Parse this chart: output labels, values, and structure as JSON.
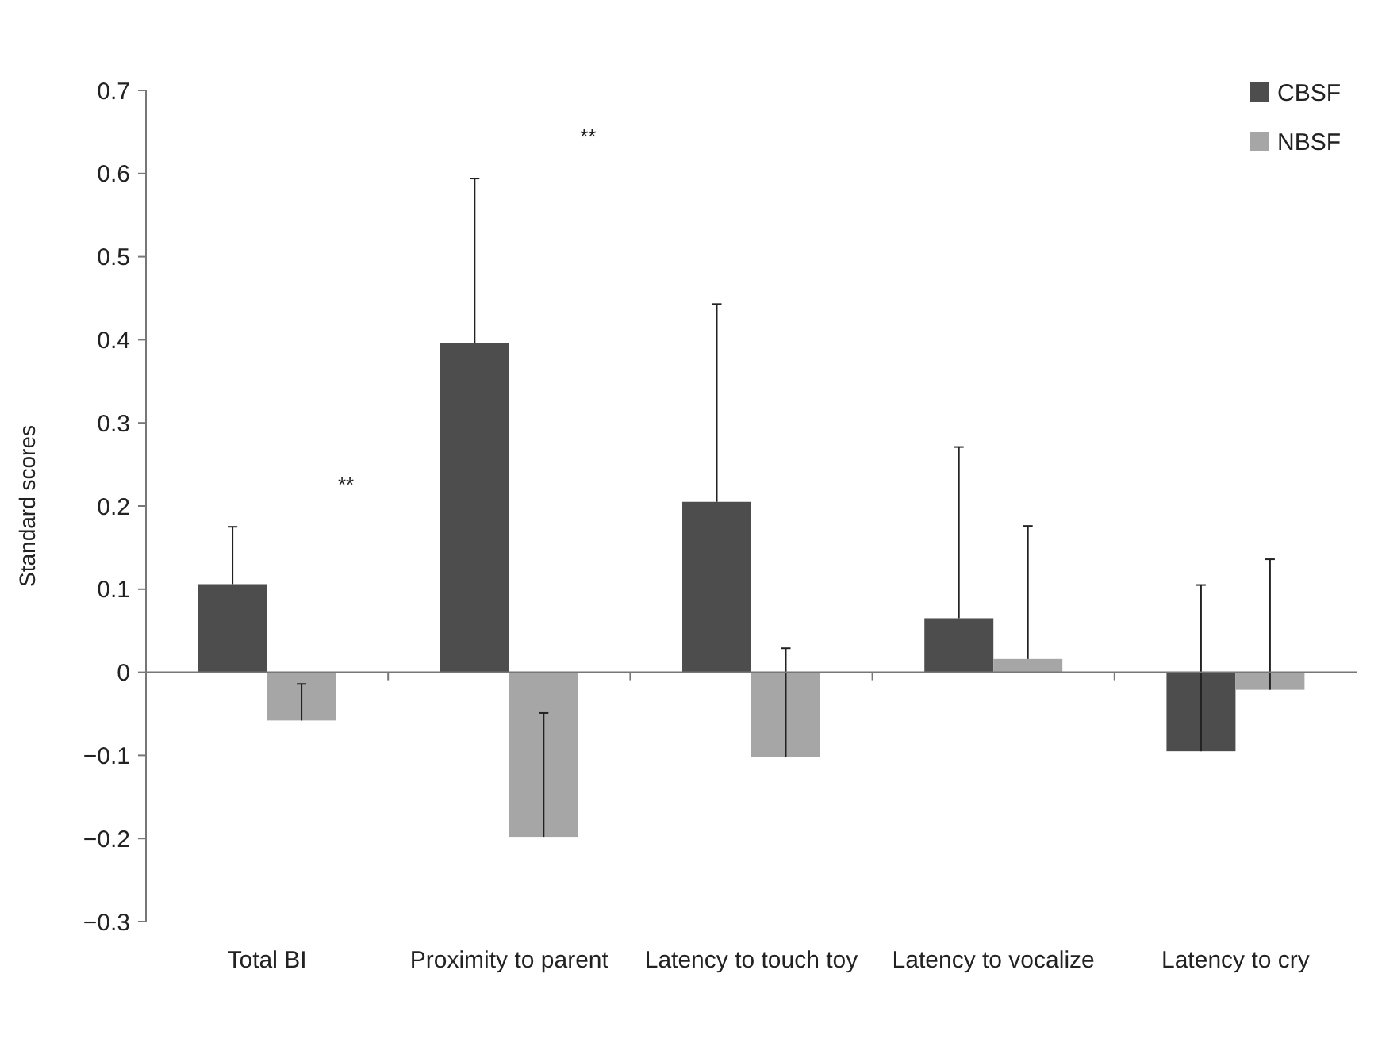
{
  "chart_data": {
    "type": "bar",
    "ylabel": "Standard scores",
    "categories": [
      "Total BI",
      "Proximity to parent",
      "Latency to touch toy",
      "Latency to vocalize",
      "Latency to cry"
    ],
    "series": [
      {
        "name": "CBSF",
        "color": "#4d4d4d",
        "values": [
          0.106,
          0.396,
          0.205,
          0.065,
          -0.095
        ],
        "errors": [
          [
            0.106,
            0.175
          ],
          [
            0.396,
            0.594
          ],
          [
            0.205,
            0.443
          ],
          [
            0.065,
            0.271
          ],
          [
            -0.095,
            0.105
          ]
        ]
      },
      {
        "name": "NBSF",
        "color": "#a6a6a6",
        "values": [
          -0.058,
          -0.198,
          -0.102,
          0.016,
          -0.021
        ],
        "errors": [
          [
            -0.058,
            -0.014
          ],
          [
            -0.198,
            -0.049
          ],
          [
            -0.102,
            0.029
          ],
          [
            0.016,
            0.176
          ],
          [
            -0.021,
            0.136
          ]
        ]
      }
    ],
    "ylim": [
      -0.3,
      0.7
    ],
    "yticks": [
      {
        "value": -0.3,
        "label": "−0.3"
      },
      {
        "value": -0.2,
        "label": "−0.2"
      },
      {
        "value": -0.1,
        "label": "−0.1"
      },
      0,
      0.1,
      0.2,
      0.3,
      0.4,
      0.5,
      0.6,
      0.7
    ],
    "annotations": [
      "**",
      "**"
    ],
    "legend": "top right"
  }
}
